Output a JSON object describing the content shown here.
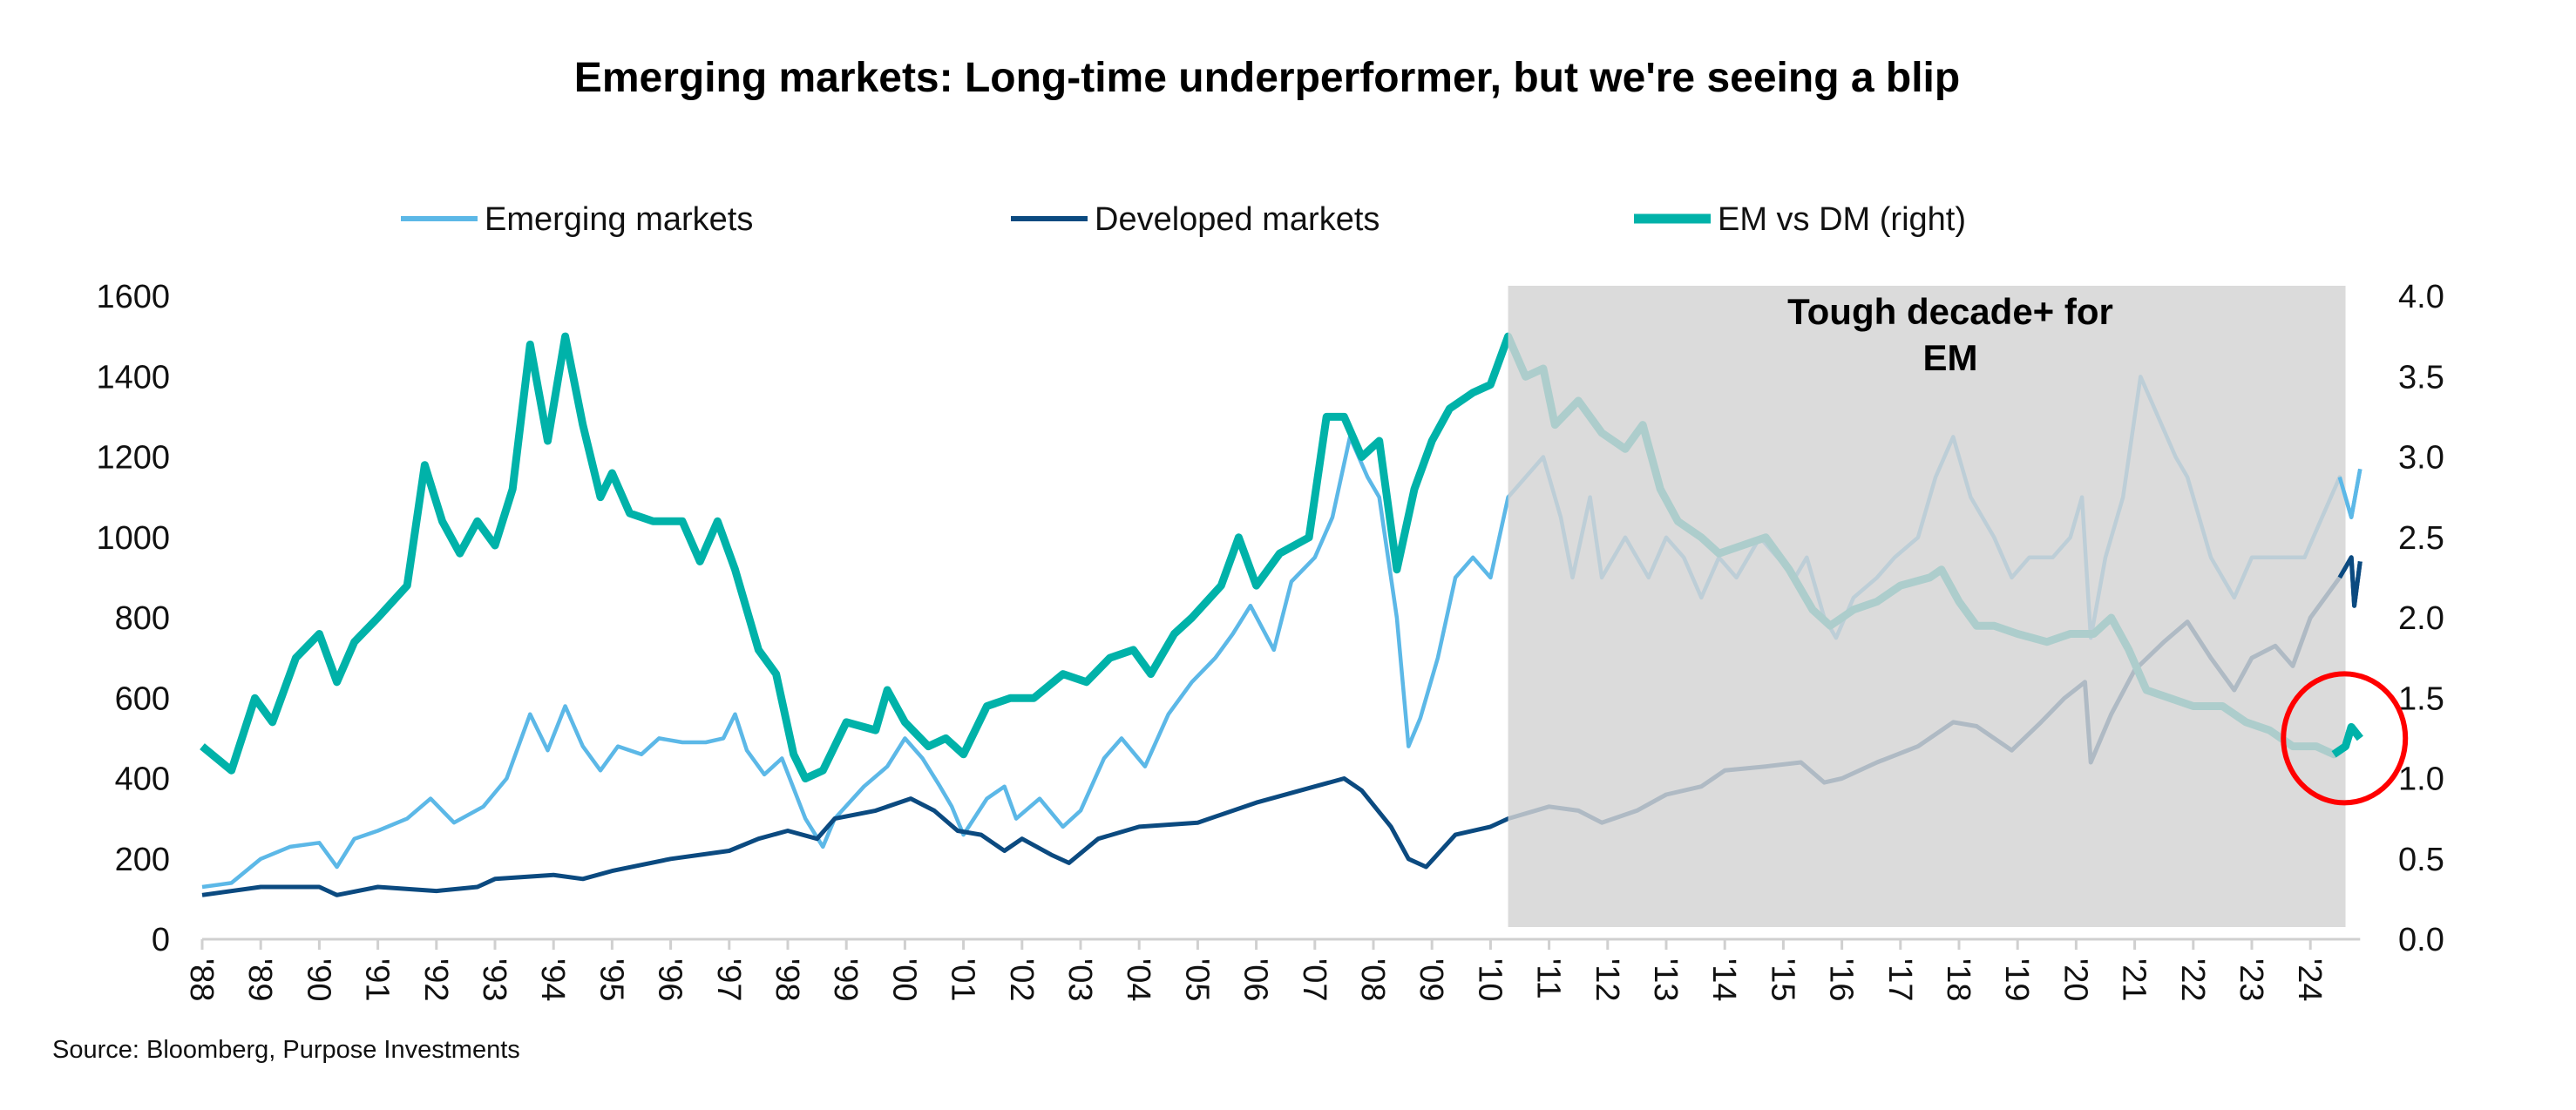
{
  "chart_data": {
    "type": "line",
    "title": "Emerging markets: Long-time underperformer, but we're seeing a blip",
    "source": "Source: Bloomberg, Purpose Investments",
    "x_ticks": [
      "'88",
      "'89",
      "'90",
      "'91",
      "'92",
      "'93",
      "'94",
      "'95",
      "'96",
      "'97",
      "'98",
      "'99",
      "'00",
      "'01",
      "'02",
      "'03",
      "'04",
      "'05",
      "'06",
      "'07",
      "'08",
      "'09",
      "'10",
      "'11",
      "'12",
      "'13",
      "'14",
      "'15",
      "'16",
      "'17",
      "'18",
      "'19",
      "'20",
      "'21",
      "'22",
      "'23",
      "'24"
    ],
    "xlim": [
      1988,
      2024.85
    ],
    "y_left": {
      "ylim": [
        0,
        1600
      ],
      "ticks": [
        "0",
        "200",
        "400",
        "600",
        "800",
        "1000",
        "1200",
        "1400",
        "1600"
      ]
    },
    "y_right": {
      "ylim": [
        0,
        4
      ],
      "ticks": [
        "0.0",
        "0.5",
        "1.0",
        "1.5",
        "2.0",
        "2.5",
        "3.0",
        "3.5",
        "4.0"
      ]
    },
    "grid": false,
    "legend_placement": "top",
    "annotation": {
      "lines": [
        "Tough decade+ for",
        "EM"
      ],
      "shaded_x_range": [
        2010.3,
        2024.6
      ],
      "shade_color": "#d3d3d3"
    },
    "highlight": {
      "shape": "circle",
      "color": "#ff0000",
      "x": 2024.7,
      "y_right": 1.25
    },
    "series": [
      {
        "name": "Emerging markets",
        "axis": "left",
        "color": "#5cb8e7",
        "x": [
          1988.0,
          1988.5,
          1989,
          1989.5,
          1990,
          1990.3,
          1990.6,
          1991,
          1991.5,
          1991.9,
          1992.3,
          1992.8,
          1993.2,
          1993.6,
          1993.9,
          1994.2,
          1994.5,
          1994.8,
          1995.1,
          1995.5,
          1995.8,
          1996.2,
          1996.6,
          1996.9,
          1997.1,
          1997.3,
          1997.6,
          1997.9,
          1998.3,
          1998.6,
          1998.8,
          1999.3,
          1999.7,
          2000.0,
          2000.3,
          2000.6,
          2000.8,
          2001.0,
          2001.4,
          2001.7,
          2001.9,
          2002.3,
          2002.7,
          2003.0,
          2003.4,
          2003.7,
          2004.1,
          2004.5,
          2004.9,
          2005.3,
          2005.6,
          2005.9,
          2006.3,
          2006.6,
          2007.0,
          2007.3,
          2007.6,
          2007.9,
          2008.1,
          2008.4,
          2008.6,
          2008.8,
          2009.1,
          2009.4,
          2009.7,
          2010.0,
          2010.3,
          2010.6,
          2010.9,
          2011.2,
          2011.4,
          2011.7,
          2011.9,
          2012.3,
          2012.7,
          2013.0,
          2013.3,
          2013.6,
          2013.9,
          2014.2,
          2014.6,
          2014.9,
          2015.2,
          2015.4,
          2015.7,
          2015.9,
          2016.2,
          2016.6,
          2016.9,
          2017.3,
          2017.6,
          2017.9,
          2018.2,
          2018.6,
          2018.9,
          2019.2,
          2019.6,
          2019.9,
          2020.1,
          2020.25,
          2020.5,
          2020.8,
          2021.1,
          2021.4,
          2021.7,
          2021.9,
          2022.3,
          2022.7,
          2023.0,
          2023.3,
          2023.6,
          2023.9,
          2024.2,
          2024.5,
          2024.7,
          2024.85
        ],
        "values": [
          130,
          140,
          200,
          230,
          240,
          180,
          250,
          270,
          300,
          350,
          290,
          330,
          400,
          560,
          470,
          580,
          480,
          420,
          480,
          460,
          500,
          490,
          490,
          500,
          560,
          470,
          410,
          450,
          300,
          230,
          300,
          380,
          430,
          500,
          450,
          380,
          330,
          260,
          350,
          380,
          300,
          350,
          280,
          320,
          450,
          500,
          430,
          560,
          640,
          700,
          760,
          830,
          720,
          890,
          950,
          1050,
          1250,
          1150,
          1100,
          800,
          480,
          550,
          700,
          900,
          950,
          900,
          1100,
          1150,
          1200,
          1050,
          900,
          1100,
          900,
          1000,
          900,
          1000,
          950,
          850,
          950,
          900,
          1000,
          950,
          900,
          950,
          800,
          750,
          850,
          900,
          950,
          1000,
          1150,
          1250,
          1100,
          1000,
          900,
          950,
          950,
          1000,
          1100,
          750,
          950,
          1100,
          1400,
          1300,
          1200,
          1150,
          950,
          850,
          950,
          950,
          950,
          950,
          1050,
          1150,
          1050,
          1170
        ]
      },
      {
        "name": "Developed markets",
        "axis": "left",
        "color": "#0b4a80",
        "x": [
          1988,
          1989,
          1990,
          1990.3,
          1991,
          1992,
          1992.7,
          1993,
          1994,
          1994.5,
          1995,
          1996,
          1997,
          1997.5,
          1998,
          1998.5,
          1998.8,
          1999.5,
          2000.1,
          2000.5,
          2000.9,
          2001.3,
          2001.7,
          2002.0,
          2002.5,
          2002.8,
          2003.3,
          2004,
          2005,
          2006,
          2007,
          2007.5,
          2007.8,
          2008.3,
          2008.6,
          2008.9,
          2009.4,
          2010,
          2010.3,
          2011,
          2011.5,
          2011.9,
          2012.5,
          2013,
          2013.6,
          2014,
          2014.7,
          2015.3,
          2015.7,
          2016,
          2016.6,
          2017.3,
          2017.9,
          2018.3,
          2018.9,
          2019.4,
          2019.8,
          2020.15,
          2020.25,
          2020.6,
          2021.0,
          2021.5,
          2021.9,
          2022.3,
          2022.7,
          2023.0,
          2023.4,
          2023.7,
          2024.0,
          2024.5,
          2024.7,
          2024.75,
          2024.85
        ],
        "values": [
          110,
          130,
          130,
          110,
          130,
          120,
          130,
          150,
          160,
          150,
          170,
          200,
          220,
          250,
          270,
          250,
          300,
          320,
          350,
          320,
          270,
          260,
          220,
          250,
          210,
          190,
          250,
          280,
          290,
          340,
          380,
          400,
          370,
          280,
          200,
          180,
          260,
          280,
          300,
          330,
          320,
          290,
          320,
          360,
          380,
          420,
          430,
          440,
          390,
          400,
          440,
          480,
          540,
          530,
          470,
          540,
          600,
          640,
          440,
          560,
          670,
          740,
          790,
          700,
          620,
          700,
          730,
          680,
          800,
          900,
          950,
          830,
          940
        ]
      },
      {
        "name": "EM vs DM (right)",
        "axis": "right",
        "color": "#00b2a9",
        "x": [
          1988,
          1988.5,
          1988.9,
          1989.2,
          1989.6,
          1990.0,
          1990.3,
          1990.6,
          1991,
          1991.5,
          1991.8,
          1992.1,
          1992.4,
          1992.7,
          1993.0,
          1993.3,
          1993.6,
          1993.9,
          1994.2,
          1994.5,
          1994.8,
          1995.0,
          1995.3,
          1995.7,
          1996.2,
          1996.5,
          1996.8,
          1997.1,
          1997.5,
          1997.8,
          1998.1,
          1998.3,
          1998.6,
          1999,
          1999.5,
          1999.7,
          2000.0,
          2000.4,
          2000.7,
          2001.0,
          2001.4,
          2001.8,
          2002.2,
          2002.7,
          2003.1,
          2003.5,
          2003.9,
          2004.2,
          2004.6,
          2004.9,
          2005.4,
          2005.7,
          2006.0,
          2006.4,
          2006.9,
          2007.2,
          2007.5,
          2007.8,
          2008.1,
          2008.4,
          2008.7,
          2009.0,
          2009.3,
          2009.7,
          2010.0,
          2010.3,
          2010.6,
          2010.9,
          2011.1,
          2011.5,
          2011.9,
          2012.3,
          2012.6,
          2012.9,
          2013.2,
          2013.6,
          2013.9,
          2014.3,
          2014.7,
          2015.1,
          2015.5,
          2015.8,
          2016.2,
          2016.6,
          2017.0,
          2017.5,
          2017.7,
          2018.0,
          2018.3,
          2018.6,
          2019.0,
          2019.5,
          2019.9,
          2020.3,
          2020.6,
          2020.9,
          2021.2,
          2021.6,
          2022.0,
          2022.5,
          2022.9,
          2023.3,
          2023.7,
          2024.1,
          2024.4,
          2024.6,
          2024.7,
          2024.85
        ],
        "values": [
          1.2,
          1.05,
          1.5,
          1.35,
          1.75,
          1.9,
          1.6,
          1.85,
          2.0,
          2.2,
          2.95,
          2.6,
          2.4,
          2.6,
          2.45,
          2.8,
          3.7,
          3.1,
          3.75,
          3.2,
          2.75,
          2.9,
          2.65,
          2.6,
          2.6,
          2.35,
          2.6,
          2.3,
          1.8,
          1.65,
          1.15,
          1.0,
          1.05,
          1.35,
          1.3,
          1.55,
          1.35,
          1.2,
          1.25,
          1.15,
          1.45,
          1.5,
          1.5,
          1.65,
          1.6,
          1.75,
          1.8,
          1.65,
          1.9,
          2.0,
          2.2,
          2.5,
          2.2,
          2.4,
          2.5,
          3.25,
          3.25,
          3.0,
          3.1,
          2.3,
          2.8,
          3.1,
          3.3,
          3.4,
          3.45,
          3.75,
          3.5,
          3.55,
          3.2,
          3.35,
          3.15,
          3.05,
          3.2,
          2.8,
          2.6,
          2.5,
          2.4,
          2.45,
          2.5,
          2.3,
          2.05,
          1.95,
          2.05,
          2.1,
          2.2,
          2.25,
          2.3,
          2.1,
          1.95,
          1.95,
          1.9,
          1.85,
          1.9,
          1.9,
          2.0,
          1.8,
          1.55,
          1.5,
          1.45,
          1.45,
          1.35,
          1.3,
          1.2,
          1.2,
          1.15,
          1.2,
          1.32,
          1.25
        ]
      }
    ]
  }
}
